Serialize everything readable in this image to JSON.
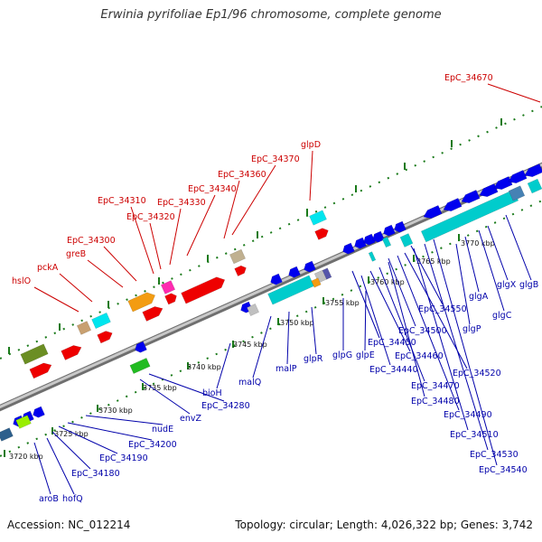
{
  "title": "Erwinia pyrifoliae Ep1/96 chromosome, complete genome",
  "footer": {
    "accession": "Accession: NC_012214",
    "info": "Topology: circular; Length: 4,026,322 bp; Genes: 3,742"
  },
  "ticks": [
    "3720 kbp",
    "3725 kbp",
    "3730 kbp",
    "3735 kbp",
    "3740 kbp",
    "3745 kbp",
    "3750 kbp",
    "3755 kbp",
    "3760 kbp",
    "3765 kbp",
    "3770 kbp"
  ],
  "labels_forward": [
    "hslO",
    "pckA",
    "greB",
    "EpC_34300",
    "EpC_34310",
    "EpC_34320",
    "EpC_34330",
    "EpC_34340",
    "EpC_34360",
    "EpC_34370",
    "glpD",
    "EpC_34670"
  ],
  "labels_reverse": [
    "aroB",
    "hofQ",
    "EpC_34180",
    "EpC_34190",
    "EpC_34200",
    "nudE",
    "envZ",
    "EpC_34280",
    "bioH",
    "malQ",
    "malP",
    "glpR",
    "glpG",
    "glpE",
    "EpC_34450",
    "EpC_34440",
    "EpC_34460",
    "EpC_34470",
    "EpC_34480",
    "EpC_34490",
    "EpC_34500",
    "EpC_34520",
    "EpC_34510",
    "EpC_34530",
    "EpC_34540",
    "EpC_34550",
    "glgP",
    "glgA",
    "glgC",
    "glgX",
    "glgB"
  ],
  "colors": {
    "forward_label": "#cc0000",
    "reverse_label": "#0000aa",
    "backbone": "#999999",
    "tick_mark": "#1a7a1a"
  }
}
